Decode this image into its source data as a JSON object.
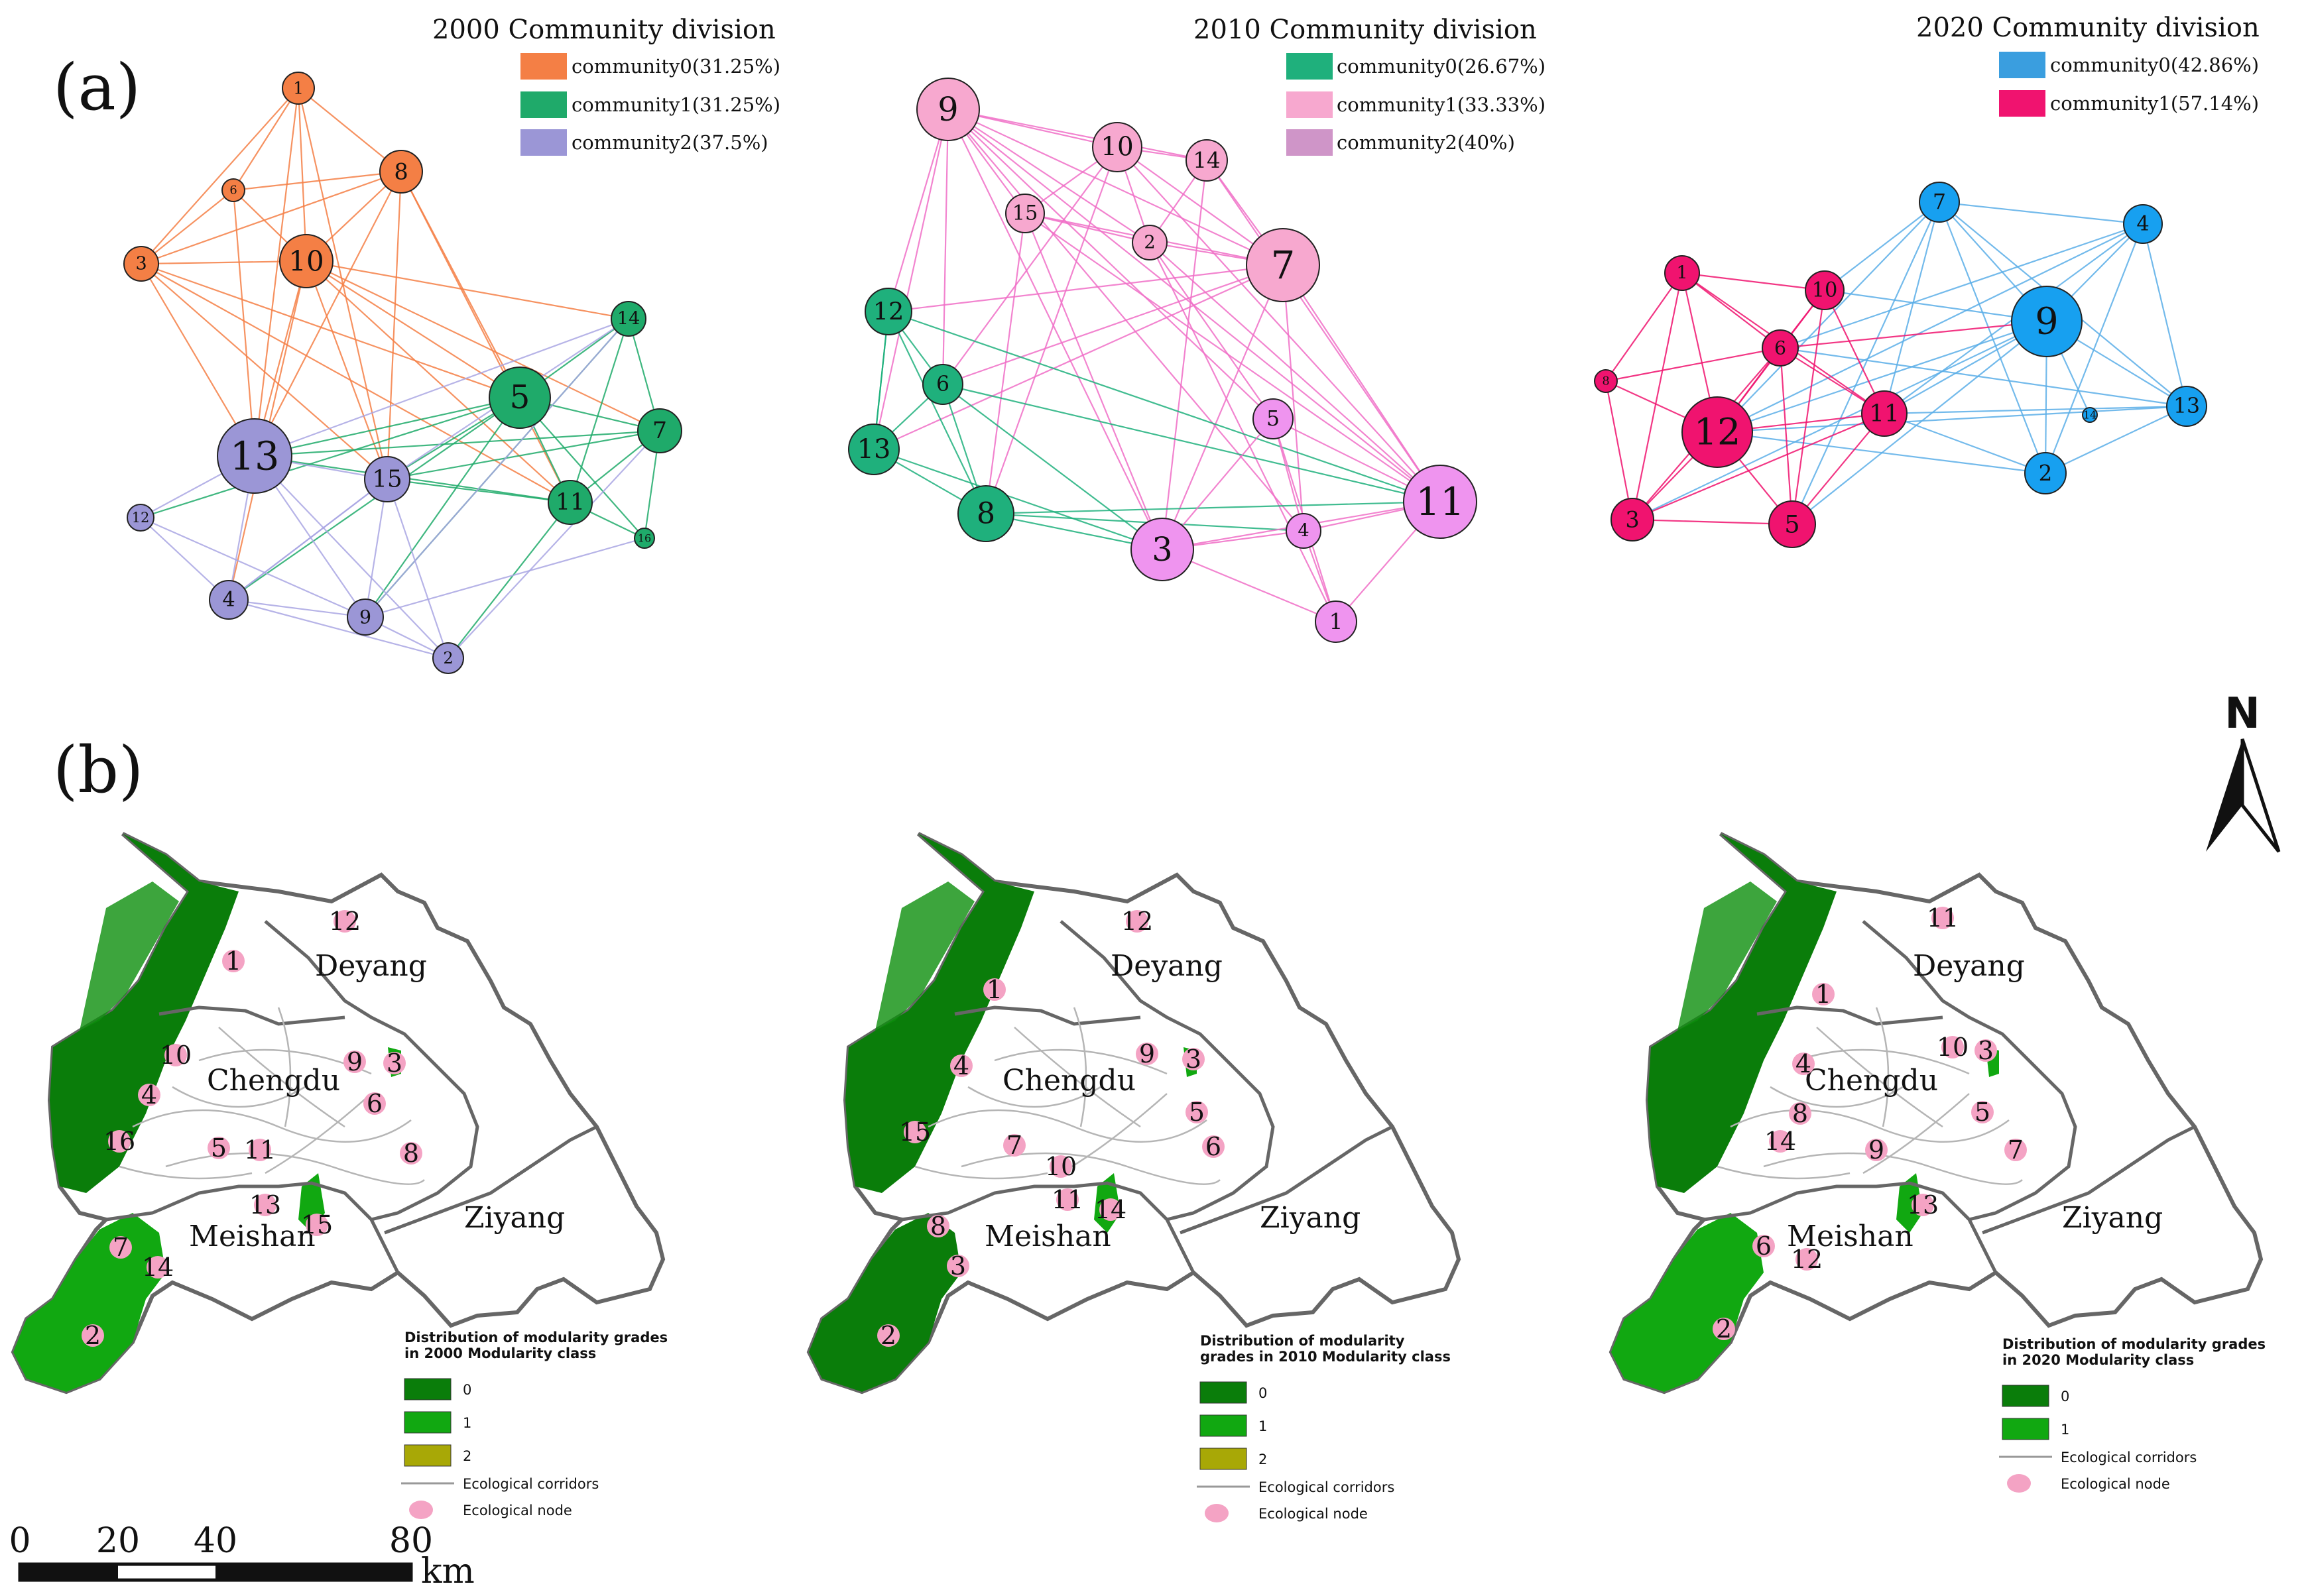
{
  "panel_a_label": "(a)",
  "panel_b_label": "(b)",
  "networks": [
    {
      "title": "2000 Community division",
      "legend": [
        {
          "label": "community0(31.25%)",
          "color": "#f47f45"
        },
        {
          "label": "community1(31.25%)",
          "color": "#1faa6a"
        },
        {
          "label": "community2(37.5%)",
          "color": "#9b96d6"
        }
      ],
      "nodes": [
        {
          "id": "1",
          "community": 0
        },
        {
          "id": "6",
          "community": 0
        },
        {
          "id": "8",
          "community": 0
        },
        {
          "id": "3",
          "community": 0
        },
        {
          "id": "10",
          "community": 0
        },
        {
          "id": "14",
          "community": 1
        },
        {
          "id": "5",
          "community": 1
        },
        {
          "id": "7",
          "community": 1
        },
        {
          "id": "11",
          "community": 1
        },
        {
          "id": "16",
          "community": 1
        },
        {
          "id": "13",
          "community": 2
        },
        {
          "id": "15",
          "community": 2
        },
        {
          "id": "12",
          "community": 2
        },
        {
          "id": "4",
          "community": 2
        },
        {
          "id": "9",
          "community": 2
        },
        {
          "id": "2",
          "community": 2
        }
      ]
    },
    {
      "title": "2010 Community division",
      "legend": [
        {
          "label": "community0(26.67%)",
          "color": "#1fb07c"
        },
        {
          "label": "community1(33.33%)",
          "color": "#f7a8cf"
        },
        {
          "label": "community2(40%)",
          "color": "#cf95c8"
        }
      ],
      "nodes": [
        {
          "id": "12",
          "community": 0
        },
        {
          "id": "6",
          "community": 0
        },
        {
          "id": "13",
          "community": 0
        },
        {
          "id": "8",
          "community": 0
        },
        {
          "id": "9",
          "community": 1
        },
        {
          "id": "10",
          "community": 1
        },
        {
          "id": "14",
          "community": 1
        },
        {
          "id": "15",
          "community": 1
        },
        {
          "id": "2",
          "community": 1
        },
        {
          "id": "7",
          "community": 1
        },
        {
          "id": "5",
          "community": 2
        },
        {
          "id": "11",
          "community": 2
        },
        {
          "id": "3",
          "community": 2
        },
        {
          "id": "4",
          "community": 2
        },
        {
          "id": "1",
          "community": 2
        }
      ]
    },
    {
      "title": "2020 Community division",
      "legend": [
        {
          "label": "community0(42.86%)",
          "color": "#3a9edf"
        },
        {
          "label": "community1(57.14%)",
          "color": "#f0136f"
        }
      ],
      "nodes": [
        {
          "id": "7",
          "community": 0
        },
        {
          "id": "4",
          "community": 0
        },
        {
          "id": "9",
          "community": 0
        },
        {
          "id": "13",
          "community": 0
        },
        {
          "id": "2",
          "community": 0
        },
        {
          "id": "14",
          "community": 0
        },
        {
          "id": "1",
          "community": 1
        },
        {
          "id": "10",
          "community": 1
        },
        {
          "id": "6",
          "community": 1
        },
        {
          "id": "8",
          "community": 1
        },
        {
          "id": "12",
          "community": 1
        },
        {
          "id": "11",
          "community": 1
        },
        {
          "id": "3",
          "community": 1
        },
        {
          "id": "5",
          "community": 1
        }
      ]
    }
  ],
  "maps": [
    {
      "cities": [
        "Deyang",
        "Chengdu",
        "Meishan",
        "Ziyang"
      ],
      "nodes": [
        "12",
        "1",
        "10",
        "9",
        "3",
        "4",
        "6",
        "16",
        "5",
        "11",
        "8",
        "13",
        "15",
        "7",
        "14",
        "2"
      ],
      "legend_title_line1": "Distribution of modularity grades",
      "legend_title_line2": "in 2000 Modularity class",
      "classes": [
        {
          "label": "0",
          "color": "#0a7d0a"
        },
        {
          "label": "1",
          "color": "#11a811"
        },
        {
          "label": "2",
          "color": "#a8a806"
        }
      ],
      "corridor_label": "Ecological corridors",
      "node_label": "Ecological node"
    },
    {
      "cities": [
        "Deyang",
        "Chengdu",
        "Meishan",
        "Ziyang"
      ],
      "nodes": [
        "12",
        "1",
        "4",
        "9",
        "3",
        "5",
        "15",
        "7",
        "10",
        "6",
        "11",
        "14",
        "8",
        "3",
        "2"
      ],
      "legend_title_line1": "Distribution of modularity",
      "legend_title_line2": "grades in 2010 Modularity class",
      "classes": [
        {
          "label": "0",
          "color": "#0a7d0a"
        },
        {
          "label": "1",
          "color": "#11a811"
        },
        {
          "label": "2",
          "color": "#a8a806"
        }
      ],
      "corridor_label": "Ecological corridors",
      "node_label": "Ecological node"
    },
    {
      "cities": [
        "Deyang",
        "Chengdu",
        "Meishan",
        "Ziyang"
      ],
      "nodes": [
        "11",
        "1",
        "4",
        "10",
        "3",
        "8",
        "5",
        "14",
        "7",
        "9",
        "13",
        "6",
        "12",
        "2"
      ],
      "legend_title_line1": "Distribution of modularity grades",
      "legend_title_line2": "in 2020 Modularity class",
      "classes": [
        {
          "label": "0",
          "color": "#0a7d0a"
        },
        {
          "label": "1",
          "color": "#11a811"
        }
      ],
      "corridor_label": "Ecological corridors",
      "node_label": "Ecological node"
    }
  ],
  "north_arrow": "N",
  "scale_bar": {
    "ticks": [
      "0",
      "20",
      "40",
      "80"
    ],
    "unit": "km"
  }
}
